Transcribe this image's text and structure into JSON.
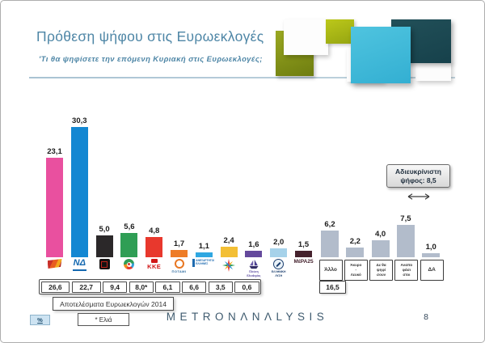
{
  "slide": {
    "title": "Πρόθεση ψήφου στις Ευρωεκλογές",
    "subtitle": "'Τι θα ψηφίσετε την επόμενη Κυριακή στις Ευρωεκλογές;",
    "page_number": "8",
    "brand_logo": "METRONΛNΛLYSIS",
    "percent_badge": "%",
    "undeclared_box": {
      "line1": "Αδιευκρίνιστη",
      "line2": "ψήφος: 8,5"
    }
  },
  "chart_data": {
    "type": "bar",
    "title": "Πρόθεση ψήφου στις Ευρωεκλογές",
    "subtitle": "'Τι θα ψηφίσετε την επόμενη Κυριακή στις Ευρωεκλογές;",
    "unit": "%",
    "ylim": [
      0,
      32
    ],
    "grid": false,
    "legend": "none",
    "parties": [
      {
        "id": "syriza",
        "name": "ΣΥΡΙΖΑ",
        "label": "23,1",
        "value": 23.1,
        "color": "#e9509f",
        "logo": "syriza-flag-icon",
        "logo_kind": "flag",
        "result_2014": "26,6"
      },
      {
        "id": "nd",
        "name": "ΝΕΑ ΔΗΜΟΚΡΑΤΙΑ",
        "label": "30,3",
        "value": 30.3,
        "color": "#1387d2",
        "logo": "nd-logo-icon",
        "logo_kind": "nd",
        "logo_text": "ΝΔ",
        "result_2014": "22,7"
      },
      {
        "id": "xrysi-avgi",
        "name": "ΧΡΥΣΗ ΑΥΓΗ",
        "label": "5,0",
        "value": 5.0,
        "color": "#2b2829",
        "logo": "meander-icon",
        "logo_kind": "meander",
        "result_2014": "9,4"
      },
      {
        "id": "kinal",
        "name": "ΚΙΝΗΜΑ ΑΛΛΑΓΗΣ",
        "label": "5,6",
        "value": 5.6,
        "color": "#2f9e55",
        "logo": "kinal-circle-icon",
        "logo_kind": "circle-multi",
        "result_2014": "8,0*"
      },
      {
        "id": "kke",
        "name": "ΚΚΕ",
        "label": "4,8",
        "value": 4.8,
        "color": "#e8382d",
        "logo": "kke-logo-icon",
        "logo_kind": "kke",
        "logo_text": "ΚΚΕ",
        "result_2014": "6,1"
      },
      {
        "id": "potami",
        "name": "ΤΟ ΠΟΤΑΜΙ",
        "label": "1,7",
        "value": 1.7,
        "color": "#ee7c26",
        "logo": "potami-logo-icon",
        "logo_kind": "potami",
        "logo_text": "ΠΟΤΑΜΙ",
        "result_2014": "6,6"
      },
      {
        "id": "anel",
        "name": "ΑΝΕΞΑΡΤΗΤΟΙ ΕΛΛΗΝΕΣ",
        "label": "1,1",
        "value": 1.1,
        "color": "#2fa7e1",
        "logo": "anel-logo-icon",
        "logo_kind": "anel",
        "logo_lines": [
          "ΑΝΕΞΑΡΤΗΤΟΙ",
          "ΕΛΛΗΝΕΣ"
        ],
        "result_2014": "3,5"
      },
      {
        "id": "enosi-kentroon",
        "name": "ΕΝΩΣΗ ΚΕΝΤΡΩΩΝ",
        "label": "2,4",
        "value": 2.4,
        "color": "#f3bf35",
        "logo": "star-icon",
        "logo_kind": "star",
        "result_2014": "0,6"
      },
      {
        "id": "plefsi",
        "name": "ΠΛΕΥΣΗ ΕΛΕΥΘΕΡΙΑΣ",
        "label": "1,6",
        "value": 1.6,
        "color": "#64499c",
        "logo": "ship-icon",
        "logo_kind": "ship",
        "logo_lines": [
          "Πλεύση",
          "Ελευθερίας"
        ]
      },
      {
        "id": "elliniki-lysi",
        "name": "ΕΛΛΗΝΙΚΗ ΛΥΣΗ",
        "label": "2,0",
        "value": 2.0,
        "color": "#a6d2ea",
        "logo": "hellenic-solution-icon",
        "logo_kind": "lysi",
        "logo_lines": [
          "ΕΛΛΗΝΙΚΗ",
          "ΛΥΣΗ"
        ]
      },
      {
        "id": "mera25",
        "name": "ΜέΡΑ25",
        "label": "1,5",
        "value": 1.5,
        "color": "#45222d",
        "logo": "mera25-logo-icon",
        "logo_kind": "mera",
        "logo_text": "ΜέΡΑ25"
      }
    ],
    "other_bars": [
      {
        "id": "allo",
        "label": "Άλλο",
        "label_lines": [
          "Άλλο"
        ],
        "value_label": "6,2",
        "value": 6.2,
        "extra_2014": "16,5"
      },
      {
        "id": "akyro-lefko",
        "label": "Άκυρο - Λευκό",
        "label_lines": [
          "Άκυρο",
          "-",
          "Λευκό"
        ],
        "value_label": "2,2",
        "value": 2.2
      },
      {
        "id": "de-tha-psifisoun",
        "label": "Δε θα ψηφίσουν",
        "label_lines": [
          "Δε θα",
          "ψηφί",
          "σουν"
        ],
        "value_label": "4,0",
        "value": 4.0
      },
      {
        "id": "anapofasistoi",
        "label": "Αναποφάσιστοι",
        "label_lines": [
          "Αναπο",
          "φάσι",
          "στοι"
        ],
        "value_label": "7,5",
        "value": 7.5
      },
      {
        "id": "da",
        "label": "ΔΑ",
        "label_lines": [
          "ΔΑ"
        ],
        "value_label": "1,0",
        "value": 1.0
      }
    ],
    "other_bar_color": "#b2bccb",
    "undeclared_note": "Αδιευκρίνιστη ψήφος: 8,5",
    "results_2014": {
      "label": "Αποτελέσματα Ευρωεκλογών 2014",
      "values": [
        "26,6",
        "22,7",
        "9,4",
        "8,0*",
        "6,1",
        "6,6",
        "3,5",
        "0,6"
      ],
      "footnote": "* Ελιά"
    }
  }
}
